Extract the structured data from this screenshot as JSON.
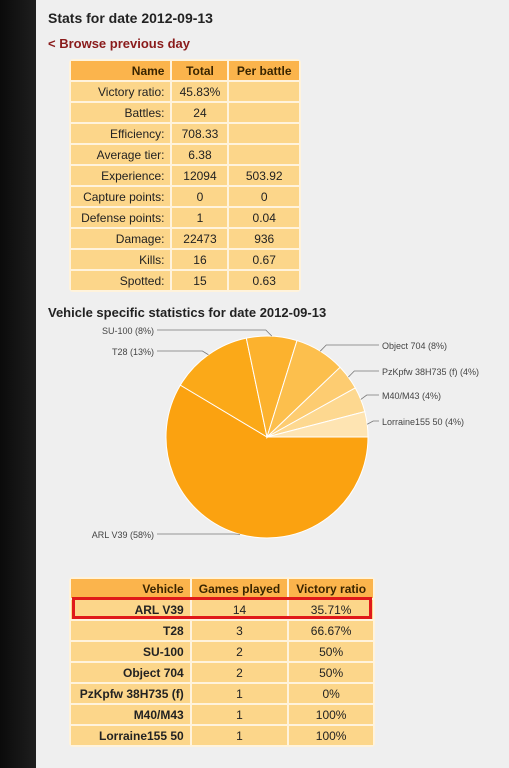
{
  "page": {
    "title": "Stats for date 2012-09-13",
    "browse_link": "< Browse previous day"
  },
  "stats_table": {
    "headers": [
      "Name",
      "Total",
      "Per battle"
    ],
    "rows": [
      {
        "name": "Victory ratio:",
        "total": "45.83%",
        "per": ""
      },
      {
        "name": "Battles:",
        "total": "24",
        "per": ""
      },
      {
        "name": "Efficiency:",
        "total": "708.33",
        "per": ""
      },
      {
        "name": "Average tier:",
        "total": "6.38",
        "per": ""
      },
      {
        "name": "Experience:",
        "total": "12094",
        "per": "503.92"
      },
      {
        "name": "Capture points:",
        "total": "0",
        "per": "0"
      },
      {
        "name": "Defense points:",
        "total": "1",
        "per": "0.04"
      },
      {
        "name": "Damage:",
        "total": "22473",
        "per": "936"
      },
      {
        "name": "Kills:",
        "total": "16",
        "per": "0.67"
      },
      {
        "name": "Spotted:",
        "total": "15",
        "per": "0.63"
      }
    ]
  },
  "vehicle_section": {
    "title": "Vehicle specific statistics for date 2012-09-13"
  },
  "chart_data": {
    "type": "pie",
    "slices": [
      {
        "label": "ARL V39 (58%)",
        "value": 58,
        "color": "#fba210"
      },
      {
        "label": "T28 (13%)",
        "value": 13,
        "color": "#fba918"
      },
      {
        "label": "SU-100 (8%)",
        "value": 8,
        "color": "#fcb22e"
      },
      {
        "label": "Object 704 (8%)",
        "value": 8,
        "color": "#fcbf4d"
      },
      {
        "label": "PzKpfw 38H735 (f) (4%)",
        "value": 4,
        "color": "#fdcc71"
      },
      {
        "label": "M40/M43 (4%)",
        "value": 4,
        "color": "#fdd890"
      },
      {
        "label": "Lorraine155 50 (4%)",
        "value": 4,
        "color": "#fee4b2"
      }
    ]
  },
  "vehicle_table": {
    "headers": [
      "Vehicle",
      "Games played",
      "Victory ratio"
    ],
    "rows": [
      {
        "vehicle": "ARL V39",
        "games": "14",
        "ratio": "35.71%"
      },
      {
        "vehicle": "T28",
        "games": "3",
        "ratio": "66.67%"
      },
      {
        "vehicle": "SU-100",
        "games": "2",
        "ratio": "50%"
      },
      {
        "vehicle": "Object 704",
        "games": "2",
        "ratio": "50%"
      },
      {
        "vehicle": "PzKpfw 38H735 (f)",
        "games": "1",
        "ratio": "0%"
      },
      {
        "vehicle": "M40/M43",
        "games": "1",
        "ratio": "100%"
      },
      {
        "vehicle": "Lorraine155 50",
        "games": "1",
        "ratio": "100%"
      }
    ]
  },
  "highlight": {
    "color": "#e01919"
  }
}
